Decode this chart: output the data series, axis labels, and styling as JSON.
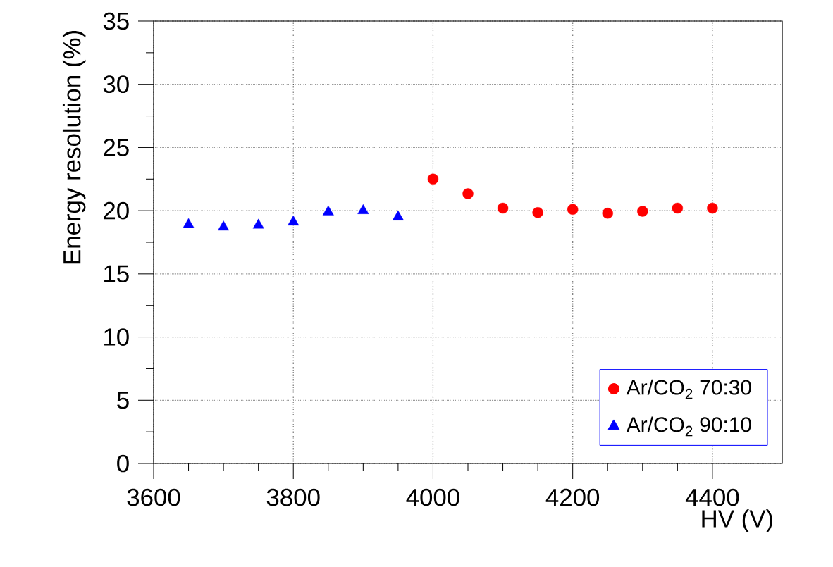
{
  "chart_data": {
    "type": "scatter",
    "xlabel": "HV (V)",
    "ylabel": "Energy resolution (%)",
    "xlim": [
      3600,
      4500
    ],
    "ylim": [
      0,
      35
    ],
    "xticks": [
      3600,
      3800,
      4000,
      4200,
      4400
    ],
    "yticks": [
      0,
      5,
      10,
      15,
      20,
      25,
      30,
      35
    ],
    "grid": true,
    "legend": "bottom right",
    "series": [
      {
        "name": "Ar/CO$_{2}$ 70:30",
        "color": "#ff0000",
        "marker": "circle",
        "x": [
          4000,
          4050,
          4100,
          4150,
          4200,
          4250,
          4300,
          4350,
          4400
        ],
        "values": [
          22.5,
          21.35,
          20.2,
          19.85,
          20.1,
          19.8,
          19.95,
          20.2,
          20.2
        ]
      },
      {
        "name": "Ar/CO$_{2}$ 90:10",
        "color": "#0000ff",
        "marker": "triangle",
        "x": [
          3650,
          3700,
          3750,
          3800,
          3850,
          3900,
          3950
        ],
        "values": [
          18.9,
          18.7,
          18.85,
          19.1,
          19.9,
          20.0,
          19.5
        ]
      }
    ]
  }
}
